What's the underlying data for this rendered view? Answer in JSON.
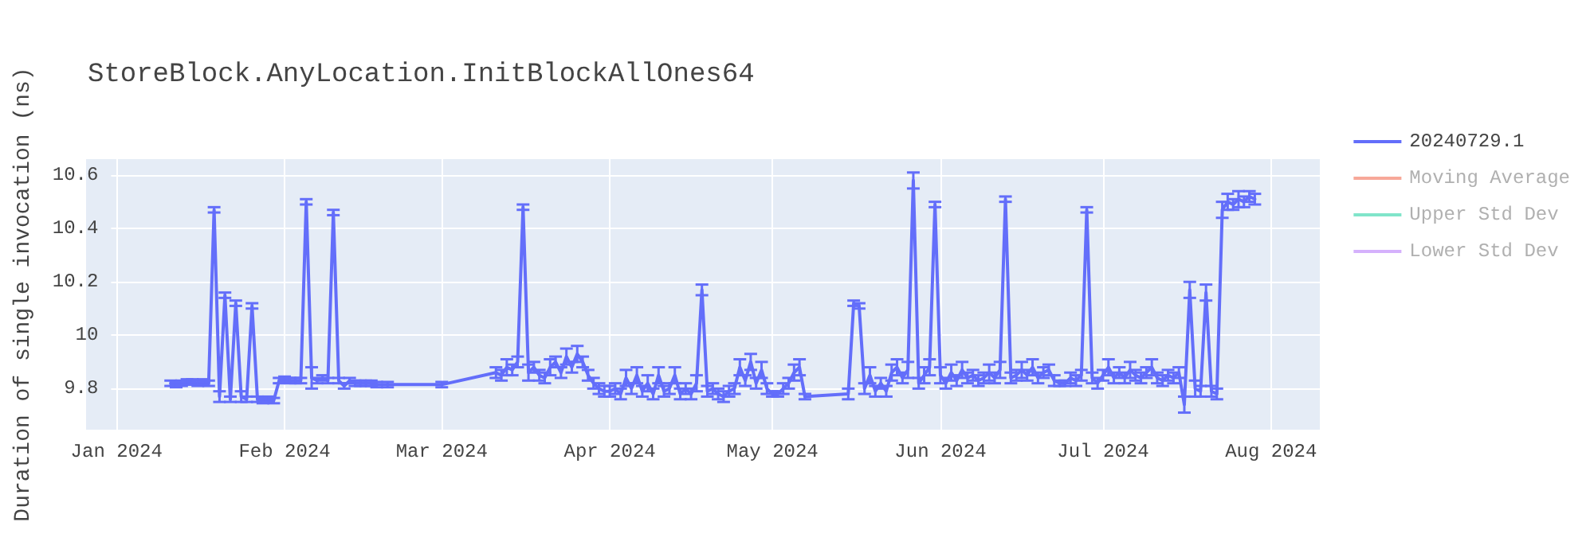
{
  "chart_data": {
    "type": "line",
    "title": "StoreBlock.AnyLocation.InitBlockAllOnes64",
    "ylabel": "Duration of single invocation (ns)",
    "xlim": [
      "2023-12-31",
      "2024-08-10"
    ],
    "xticks": [
      {
        "value": "2024-01-01",
        "label": "Jan 2024"
      },
      {
        "value": "2024-02-01",
        "label": "Feb 2024"
      },
      {
        "value": "2024-03-01",
        "label": "Mar 2024"
      },
      {
        "value": "2024-04-01",
        "label": "Apr 2024"
      },
      {
        "value": "2024-05-01",
        "label": "May 2024"
      },
      {
        "value": "2024-06-01",
        "label": "Jun 2024"
      },
      {
        "value": "2024-07-01",
        "label": "Jul 2024"
      },
      {
        "value": "2024-08-01",
        "label": "Aug 2024"
      }
    ],
    "ylim": [
      9.646,
      10.66
    ],
    "yticks": [
      9.8,
      10,
      10.2,
      10.4,
      10.6
    ],
    "grid": true,
    "legend": "top right",
    "marker": "none",
    "line_style": "solid",
    "series": [
      {
        "name": "20240729.1",
        "color": "#636efa",
        "x": [
          "2024-01-11",
          "2024-01-12",
          "2024-01-13",
          "2024-01-14",
          "2024-01-15",
          "2024-01-16",
          "2024-01-17",
          "2024-01-18",
          "2024-01-19",
          "2024-01-20",
          "2024-01-21",
          "2024-01-22",
          "2024-01-23",
          "2024-01-24",
          "2024-01-25",
          "2024-01-26",
          "2024-01-27",
          "2024-01-28",
          "2024-01-29",
          "2024-01-30",
          "2024-01-31",
          "2024-02-01",
          "2024-02-02",
          "2024-02-03",
          "2024-02-04",
          "2024-02-05",
          "2024-02-06",
          "2024-02-07",
          "2024-02-08",
          "2024-02-09",
          "2024-02-10",
          "2024-02-11",
          "2024-02-12",
          "2024-02-13",
          "2024-02-14",
          "2024-02-15",
          "2024-02-16",
          "2024-02-17",
          "2024-02-18",
          "2024-02-20",
          "2024-03-01",
          "2024-03-11",
          "2024-03-12",
          "2024-03-13",
          "2024-03-14",
          "2024-03-15",
          "2024-03-16",
          "2024-03-17",
          "2024-03-18",
          "2024-03-19",
          "2024-03-20",
          "2024-03-21",
          "2024-03-22",
          "2024-03-23",
          "2024-03-24",
          "2024-03-25",
          "2024-03-26",
          "2024-03-27",
          "2024-03-28",
          "2024-03-29",
          "2024-03-30",
          "2024-03-31",
          "2024-04-01",
          "2024-04-02",
          "2024-04-03",
          "2024-04-04",
          "2024-04-05",
          "2024-04-06",
          "2024-04-07",
          "2024-04-08",
          "2024-04-09",
          "2024-04-10",
          "2024-04-11",
          "2024-04-12",
          "2024-04-13",
          "2024-04-14",
          "2024-04-15",
          "2024-04-16",
          "2024-04-17",
          "2024-04-18",
          "2024-04-19",
          "2024-04-20",
          "2024-04-21",
          "2024-04-22",
          "2024-04-23",
          "2024-04-24",
          "2024-04-25",
          "2024-04-26",
          "2024-04-27",
          "2024-04-28",
          "2024-04-29",
          "2024-04-30",
          "2024-05-01",
          "2024-05-02",
          "2024-05-03",
          "2024-05-04",
          "2024-05-05",
          "2024-05-06",
          "2024-05-07",
          "2024-05-15",
          "2024-05-16",
          "2024-05-17",
          "2024-05-18",
          "2024-05-19",
          "2024-05-20",
          "2024-05-21",
          "2024-05-22",
          "2024-05-23",
          "2024-05-24",
          "2024-05-25",
          "2024-05-26",
          "2024-05-27",
          "2024-05-28",
          "2024-05-29",
          "2024-05-30",
          "2024-05-31",
          "2024-06-01",
          "2024-06-02",
          "2024-06-03",
          "2024-06-04",
          "2024-06-05",
          "2024-06-06",
          "2024-06-07",
          "2024-06-08",
          "2024-06-09",
          "2024-06-10",
          "2024-06-11",
          "2024-06-12",
          "2024-06-13",
          "2024-06-14",
          "2024-06-15",
          "2024-06-16",
          "2024-06-17",
          "2024-06-18",
          "2024-06-19",
          "2024-06-20",
          "2024-06-21",
          "2024-06-22",
          "2024-06-23",
          "2024-06-24",
          "2024-06-25",
          "2024-06-26",
          "2024-06-27",
          "2024-06-28",
          "2024-06-29",
          "2024-06-30",
          "2024-07-01",
          "2024-07-02",
          "2024-07-03",
          "2024-07-04",
          "2024-07-05",
          "2024-07-06",
          "2024-07-07",
          "2024-07-08",
          "2024-07-09",
          "2024-07-10",
          "2024-07-11",
          "2024-07-12",
          "2024-07-13",
          "2024-07-14",
          "2024-07-15",
          "2024-07-16",
          "2024-07-17",
          "2024-07-18",
          "2024-07-19",
          "2024-07-20",
          "2024-07-21",
          "2024-07-22",
          "2024-07-23",
          "2024-07-24",
          "2024-07-25",
          "2024-07-26",
          "2024-07-27",
          "2024-07-28",
          "2024-07-29"
        ],
        "values": [
          9.82,
          9.815,
          9.82,
          9.825,
          9.825,
          9.82,
          9.825,
          9.82,
          10.47,
          9.77,
          10.15,
          9.76,
          10.12,
          9.77,
          9.76,
          10.11,
          9.76,
          9.755,
          9.76,
          9.755,
          9.83,
          9.835,
          9.83,
          9.83,
          9.83,
          10.5,
          9.84,
          9.83,
          9.84,
          9.83,
          10.46,
          9.83,
          9.81,
          9.83,
          9.82,
          9.82,
          9.82,
          9.82,
          9.815,
          9.815,
          9.815,
          9.86,
          9.85,
          9.88,
          9.87,
          9.9,
          10.48,
          9.86,
          9.88,
          9.85,
          9.84,
          9.88,
          9.9,
          9.86,
          9.92,
          9.88,
          9.93,
          9.9,
          9.85,
          9.82,
          9.8,
          9.79,
          9.79,
          9.8,
          9.78,
          9.84,
          9.8,
          9.85,
          9.79,
          9.82,
          9.78,
          9.85,
          9.79,
          9.8,
          9.85,
          9.78,
          9.8,
          9.78,
          9.82,
          10.17,
          9.79,
          9.8,
          9.78,
          9.77,
          9.79,
          9.8,
          9.88,
          9.83,
          9.9,
          9.82,
          9.87,
          9.8,
          9.78,
          9.78,
          9.8,
          9.82,
          9.86,
          9.88,
          9.77,
          9.78,
          10.12,
          10.11,
          9.8,
          9.85,
          9.79,
          9.82,
          9.79,
          9.86,
          9.88,
          9.84,
          9.87,
          10.58,
          9.82,
          9.85,
          9.88,
          10.49,
          9.85,
          9.82,
          9.86,
          9.83,
          9.87,
          9.84,
          9.85,
          9.83,
          9.84,
          9.86,
          9.84,
          9.87,
          10.51,
          9.84,
          9.85,
          9.87,
          9.85,
          9.88,
          9.84,
          9.86,
          9.87,
          9.83,
          9.82,
          9.82,
          9.84,
          9.83,
          9.85,
          10.47,
          9.84,
          9.82,
          9.85,
          9.88,
          9.84,
          9.86,
          9.84,
          9.87,
          9.85,
          9.84,
          9.86,
          9.88,
          9.84,
          9.83,
          9.85,
          9.84,
          9.86,
          9.74,
          10.17,
          9.8,
          9.79,
          10.16,
          9.79,
          9.78,
          10.47,
          10.5,
          10.49,
          10.51,
          10.5,
          10.52,
          10.51
        ],
        "errors": [
          0.01,
          0.01,
          0.01,
          0.01,
          0.01,
          0.01,
          0.01,
          0.01,
          0.01,
          0.02,
          0.01,
          0.01,
          0.01,
          0.02,
          0.01,
          0.01,
          0.01,
          0.01,
          0.01,
          0.01,
          0.01,
          0.01,
          0.01,
          0.01,
          0.01,
          0.01,
          0.04,
          0.01,
          0.01,
          0.01,
          0.01,
          0.01,
          0.01,
          0.01,
          0.01,
          0.01,
          0.01,
          0.01,
          0.01,
          0.01,
          0.01,
          0.02,
          0.02,
          0.03,
          0.02,
          0.02,
          0.01,
          0.03,
          0.02,
          0.02,
          0.02,
          0.03,
          0.02,
          0.02,
          0.03,
          0.02,
          0.03,
          0.02,
          0.02,
          0.02,
          0.02,
          0.02,
          0.02,
          0.02,
          0.02,
          0.03,
          0.02,
          0.03,
          0.02,
          0.03,
          0.02,
          0.03,
          0.02,
          0.02,
          0.03,
          0.02,
          0.02,
          0.02,
          0.03,
          0.02,
          0.02,
          0.02,
          0.02,
          0.02,
          0.02,
          0.02,
          0.03,
          0.02,
          0.03,
          0.02,
          0.03,
          0.02,
          0.01,
          0.01,
          0.02,
          0.02,
          0.03,
          0.03,
          0.01,
          0.02,
          0.01,
          0.01,
          0.02,
          0.03,
          0.02,
          0.02,
          0.02,
          0.03,
          0.03,
          0.02,
          0.03,
          0.03,
          0.02,
          0.03,
          0.03,
          0.01,
          0.03,
          0.02,
          0.03,
          0.02,
          0.03,
          0.02,
          0.02,
          0.02,
          0.02,
          0.03,
          0.02,
          0.03,
          0.01,
          0.02,
          0.02,
          0.03,
          0.02,
          0.03,
          0.02,
          0.02,
          0.02,
          0.02,
          0.01,
          0.01,
          0.02,
          0.02,
          0.02,
          0.01,
          0.02,
          0.02,
          0.02,
          0.03,
          0.02,
          0.02,
          0.02,
          0.03,
          0.02,
          0.02,
          0.02,
          0.03,
          0.02,
          0.02,
          0.02,
          0.02,
          0.02,
          0.03,
          0.03,
          0.03,
          0.02,
          0.03,
          0.02,
          0.02,
          0.03,
          0.03,
          0.02,
          0.03,
          0.02,
          0.02,
          0.02
        ]
      },
      {
        "name": "Moving Average",
        "color": "#f7a899"
      },
      {
        "name": "Upper Std Dev",
        "color": "#80e5ca"
      },
      {
        "name": "Lower Std Dev",
        "color": "#d5b1fc"
      }
    ]
  }
}
